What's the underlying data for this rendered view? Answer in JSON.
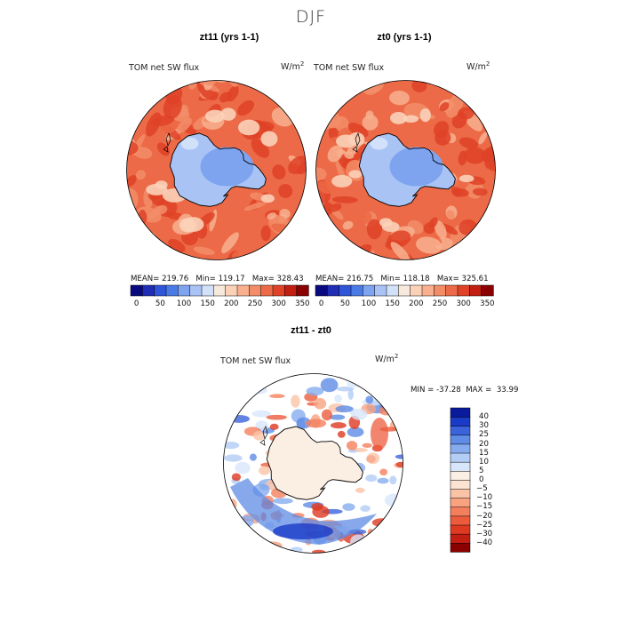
{
  "figure": {
    "season": "DJF"
  },
  "chart_data": [
    {
      "type": "polar-contour-map",
      "title": "zt11 (yrs 1-1)",
      "variable_label": "TOM net SW flux",
      "units": {
        "base": "W/m",
        "exponent": "2"
      },
      "stats": {
        "mean": "219.76",
        "min": "119.17",
        "max": "328.43"
      },
      "colorbar": {
        "ticks": [
          "0",
          "50",
          "100",
          "150",
          "200",
          "250",
          "300",
          "350"
        ],
        "levels": [
          0,
          25,
          50,
          75,
          100,
          125,
          150,
          175,
          200,
          225,
          250,
          275,
          300,
          325,
          350
        ],
        "colors": [
          "#0a0a80",
          "#1f2eb4",
          "#2f55d8",
          "#4a7ae6",
          "#7ea4f0",
          "#a9c3f5",
          "#d2e1fa",
          "#f7e9dc",
          "#fbd2b8",
          "#f8b08f",
          "#f38d68",
          "#ec6a47",
          "#df4227",
          "#c21f12",
          "#8b0000"
        ]
      }
    },
    {
      "type": "polar-contour-map",
      "title": "zt0 (yrs 1-1)",
      "variable_label": "TOM net SW flux",
      "units": {
        "base": "W/m",
        "exponent": "2"
      },
      "stats": {
        "mean": "216.75",
        "min": "118.18",
        "max": "325.61"
      },
      "colorbar": {
        "ticks": [
          "0",
          "50",
          "100",
          "150",
          "200",
          "250",
          "300",
          "350"
        ],
        "levels": [
          0,
          25,
          50,
          75,
          100,
          125,
          150,
          175,
          200,
          225,
          250,
          275,
          300,
          325,
          350
        ],
        "colors": [
          "#0a0a80",
          "#1f2eb4",
          "#2f55d8",
          "#4a7ae6",
          "#7ea4f0",
          "#a9c3f5",
          "#d2e1fa",
          "#f7e9dc",
          "#fbd2b8",
          "#f8b08f",
          "#f38d68",
          "#ec6a47",
          "#df4227",
          "#c21f12",
          "#8b0000"
        ]
      }
    },
    {
      "type": "polar-contour-map",
      "title": "zt11 - zt0",
      "variable_label": "TOM net SW flux",
      "units": {
        "base": "W/m",
        "exponent": "2"
      },
      "stats": {
        "min": "-37.28",
        "max": "33.99"
      },
      "colorbar": {
        "orientation": "vertical",
        "ticks": [
          "40",
          "30",
          "25",
          "20",
          "15",
          "10",
          "5",
          "0",
          "−5",
          "−10",
          "−15",
          "−20",
          "−25",
          "−30",
          "−40"
        ],
        "colors": [
          "#8b0000",
          "#c21f12",
          "#de3a22",
          "#ec5c3c",
          "#f47f5c",
          "#f8a27f",
          "#fbc3a6",
          "#fce3d2",
          "#fbeee2",
          "#d8e6fb",
          "#b3cdf6",
          "#86acef",
          "#5f8ce6",
          "#3b64dc",
          "#1a3bc8",
          "#0a1a9c"
        ]
      }
    }
  ],
  "labels": {
    "mean_prefix": "MEAN=",
    "min_prefix": "Min=",
    "max_prefix": "Max=",
    "diff_min_prefix": "MIN =",
    "diff_max_prefix": "MAX ="
  }
}
